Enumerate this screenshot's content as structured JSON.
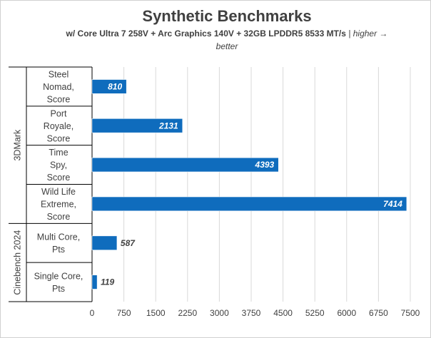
{
  "chart_data": {
    "type": "bar",
    "orientation": "horizontal",
    "title": "Synthetic Benchmarks",
    "subtitle_bold": "w/ Core Ultra 7 258V + Arc Graphics 140V + 32GB LPDDR5 8533 MT/s",
    "subtitle_italic_1": " | higher →",
    "subtitle_italic_2": "better",
    "groups": [
      {
        "name": "3DMark",
        "categories": [
          {
            "label": [
              "Steel",
              "Nomad,",
              "Score"
            ],
            "value": 810
          },
          {
            "label": [
              "Port",
              "Royale,",
              "Score"
            ],
            "value": 2131
          },
          {
            "label": [
              "Time",
              "Spy,",
              "Score"
            ],
            "value": 4393
          },
          {
            "label": [
              "Wild Life",
              "Extreme,",
              "Score"
            ],
            "value": 7414
          }
        ]
      },
      {
        "name": "Cinebench 2024",
        "categories": [
          {
            "label": [
              "Multi Core,",
              "Pts"
            ],
            "value": 587
          },
          {
            "label": [
              "Single Core,",
              "Pts"
            ],
            "value": 119
          }
        ]
      }
    ],
    "xlim": [
      0,
      7500
    ],
    "xticks": [
      0,
      750,
      1500,
      2250,
      3000,
      3750,
      4500,
      5250,
      6000,
      6750,
      7500
    ],
    "grid": true,
    "legend": "none",
    "bar_color": "#0F6CBD"
  }
}
